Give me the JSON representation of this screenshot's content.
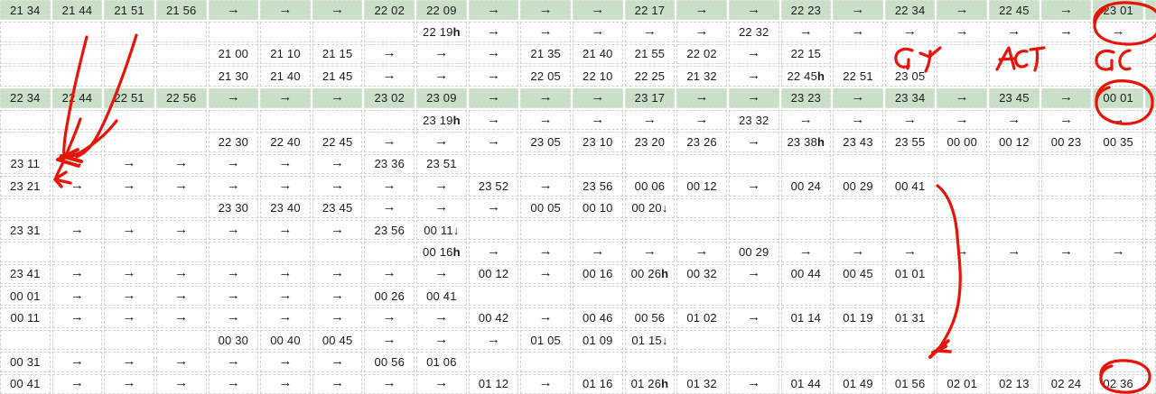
{
  "grid": {
    "columns": 22,
    "partial_last_column": true,
    "rows": [
      {
        "green": true,
        "cells": [
          "21 34",
          "21 44",
          "21 51",
          "21 56",
          "→",
          "→",
          "→",
          "22 02",
          "22 09",
          "→",
          "→",
          "→",
          "22 17",
          "→",
          "→",
          "22 23",
          "→",
          "22 34",
          "→",
          "22 45",
          "→",
          "23 01"
        ]
      },
      {
        "green": false,
        "cells": [
          "",
          "",
          "",
          "",
          "",
          "",
          "",
          "",
          "22 19h",
          "→",
          "→",
          "→",
          "→",
          "→",
          "22 32",
          "→",
          "→",
          "→",
          "→",
          "→",
          "→",
          "→"
        ]
      },
      {
        "green": false,
        "cells": [
          "",
          "",
          "",
          "",
          "21 00",
          "21 10",
          "21 15",
          "→",
          "→",
          "→",
          "21 35",
          "21 40",
          "21 55",
          "22 02",
          "→",
          "22 15",
          "",
          "",
          "",
          "",
          "",
          ""
        ]
      },
      {
        "green": false,
        "cells": [
          "",
          "",
          "",
          "",
          "21 30",
          "21 40",
          "21 45",
          "→",
          "→",
          "→",
          "22 05",
          "22 10",
          "22 25",
          "21 32",
          "→",
          "22 45h",
          "22 51",
          "23 05",
          "",
          "",
          "",
          ""
        ]
      },
      {
        "green": true,
        "cells": [
          "22 34",
          "22 44",
          "22 51",
          "22 56",
          "→",
          "→",
          "→",
          "23 02",
          "23 09",
          "→",
          "→",
          "→",
          "23 17",
          "→",
          "→",
          "23 23",
          "→",
          "23 34",
          "→",
          "23 45",
          "→",
          "00 01"
        ]
      },
      {
        "green": false,
        "cells": [
          "",
          "",
          "",
          "",
          "",
          "",
          "",
          "",
          "23 19h",
          "→",
          "→",
          "→",
          "→",
          "→",
          "23 32",
          "→",
          "→",
          "→",
          "→",
          "→",
          "→",
          "→"
        ]
      },
      {
        "green": false,
        "cells": [
          "",
          "",
          "",
          "",
          "22 30",
          "22 40",
          "22 45",
          "→",
          "→",
          "→",
          "23 05",
          "23 10",
          "23 20",
          "23 26",
          "→",
          "23 38h",
          "23 43",
          "23 55",
          "00 00",
          "00 12",
          "00 23",
          "00 35"
        ]
      },
      {
        "green": false,
        "cells": [
          "23 11",
          "→",
          "→",
          "→",
          "→",
          "→",
          "→",
          "23 36",
          "23 51",
          "",
          "",
          "",
          "",
          "",
          "",
          "",
          "",
          "",
          "",
          "",
          "",
          ""
        ]
      },
      {
        "green": false,
        "cells": [
          "23 21",
          "→",
          "→",
          "→",
          "→",
          "→",
          "→",
          "→",
          "→",
          "23 52",
          "→",
          "23 56",
          "00 06",
          "00 12",
          "→",
          "00 24",
          "00 29",
          "00 41",
          "",
          "",
          "",
          ""
        ]
      },
      {
        "green": false,
        "cells": [
          "",
          "",
          "",
          "",
          "23 30",
          "23 40",
          "23 45",
          "→",
          "→",
          "→",
          "00 05",
          "00 10",
          "00 20↓",
          "",
          "",
          "",
          "",
          "",
          "",
          "",
          "",
          ""
        ]
      },
      {
        "green": false,
        "cells": [
          "23 31",
          "→",
          "→",
          "→",
          "→",
          "→",
          "→",
          "23 56",
          "00 11↓",
          "",
          "",
          "",
          "",
          "",
          "",
          "",
          "",
          "",
          "",
          "",
          "",
          ""
        ]
      },
      {
        "green": false,
        "cells": [
          "",
          "",
          "",
          "",
          "",
          "",
          "",
          "",
          "00 16h",
          "→",
          "→",
          "→",
          "→",
          "→",
          "00 29",
          "→",
          "→",
          "→",
          "→",
          "→",
          "→",
          "→"
        ]
      },
      {
        "green": false,
        "cells": [
          "23 41",
          "→",
          "→",
          "→",
          "→",
          "→",
          "→",
          "→",
          "→",
          "00 12",
          "→",
          "00 16",
          "00 26h",
          "00 32",
          "→",
          "00 44",
          "00 45",
          "01 01",
          "",
          "",
          "",
          ""
        ]
      },
      {
        "green": false,
        "cells": [
          "00 01",
          "→",
          "→",
          "→",
          "→",
          "→",
          "→",
          "00 26",
          "00 41",
          "",
          "",
          "",
          "",
          "",
          "",
          "",
          "",
          "",
          "",
          "",
          "",
          ""
        ]
      },
      {
        "green": false,
        "cells": [
          "00 11",
          "→",
          "→",
          "→",
          "→",
          "→",
          "→",
          "→",
          "→",
          "00 42",
          "→",
          "00 46",
          "00 56",
          "01 02",
          "→",
          "01 14",
          "01 19",
          "01 31",
          "",
          "",
          "",
          ""
        ]
      },
      {
        "green": false,
        "cells": [
          "",
          "",
          "",
          "",
          "00 30",
          "00 40",
          "00 45",
          "→",
          "→",
          "→",
          "01 05",
          "01 09",
          "01 15↓",
          "",
          "",
          "",
          "",
          "",
          "",
          "",
          "",
          ""
        ]
      },
      {
        "green": false,
        "cells": [
          "00 31",
          "→",
          "→",
          "→",
          "→",
          "→",
          "→",
          "00 56",
          "01 06",
          "",
          "",
          "",
          "",
          "",
          "",
          "",
          "",
          "",
          "",
          "",
          "",
          ""
        ]
      },
      {
        "green": false,
        "cells": [
          "00 41",
          "→",
          "→",
          "→",
          "→",
          "→",
          "→",
          "→",
          "→",
          "01 12",
          "→",
          "01 16",
          "01 26h",
          "01 32",
          "→",
          "01 44",
          "01 49",
          "01 56",
          "02 01",
          "02 13",
          "02 24",
          "02 36"
        ]
      }
    ]
  },
  "annotations": {
    "ink_color": "#e91408",
    "handwritten_labels": [
      {
        "text": "GT",
        "location": "row 3, under the 22 34 column"
      },
      {
        "text": "ACT",
        "location": "row 3, under the 22 45 column"
      },
      {
        "text": "GC",
        "location": "row 3, under the 23 01 column"
      }
    ],
    "circles": [
      {
        "around": "23 01 and the arrow below it (rows 1-2, last column)"
      },
      {
        "around": "00 01 and the arrow below it (rows 5-6, last column)"
      },
      {
        "around": "02 36 (row 18, last column)"
      }
    ],
    "arrows": [
      {
        "description": "fan of strokes from the 21 44 / 21 51 header cells converging on the arrow cells of rows 23 11 and 23 21"
      },
      {
        "description": "long curve starting beside 00 41 (row 23 21) sweeping down to the 01 56 area with an arrowhead"
      }
    ]
  }
}
